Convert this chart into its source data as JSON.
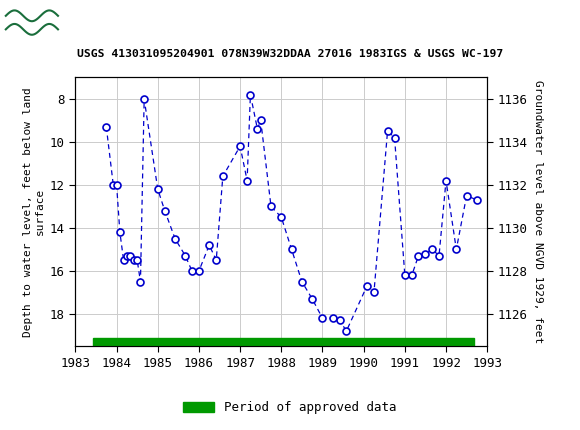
{
  "title": "USGS 413031095204901 078N39W32DDAA 27016 1983IGS & USGS WC-197",
  "ylabel_left": "Depth to water level, feet below land\nsurface",
  "ylabel_right": "Groundwater level above NGVD 1929, feet",
  "xlim": [
    1983.0,
    1993.0
  ],
  "ylim_left": [
    19.5,
    7.0
  ],
  "ylim_right": [
    1124.5,
    1137.0
  ],
  "yticks_left": [
    8,
    10,
    12,
    14,
    16,
    18
  ],
  "yticks_right": [
    1126,
    1128,
    1130,
    1132,
    1134,
    1136
  ],
  "xticks": [
    1983,
    1984,
    1985,
    1986,
    1987,
    1988,
    1989,
    1990,
    1991,
    1992,
    1993
  ],
  "header_color": "#1a6e3c",
  "line_color": "#0000cc",
  "marker_facecolor": "#ffffff",
  "marker_edgecolor": "#0000cc",
  "background_color": "#ffffff",
  "grid_color": "#cccccc",
  "legend_label": "Period of approved data",
  "bar_color": "#009900",
  "data_x": [
    1983.75,
    1983.92,
    1984.0,
    1984.08,
    1984.17,
    1984.25,
    1984.33,
    1984.42,
    1984.5,
    1984.58,
    1984.67,
    1985.0,
    1985.17,
    1985.42,
    1985.67,
    1985.83,
    1986.0,
    1986.25,
    1986.42,
    1986.58,
    1987.0,
    1987.17,
    1987.25,
    1987.42,
    1987.5,
    1987.75,
    1988.0,
    1988.25,
    1988.5,
    1988.75,
    1989.0,
    1989.25,
    1989.42,
    1989.58,
    1990.08,
    1990.25,
    1990.58,
    1990.75,
    1991.0,
    1991.17,
    1991.33,
    1991.5,
    1991.67,
    1991.83,
    1992.0,
    1992.25,
    1992.5,
    1992.75
  ],
  "data_y": [
    9.3,
    12.0,
    12.0,
    14.2,
    15.5,
    15.3,
    15.3,
    15.5,
    15.5,
    16.5,
    8.0,
    12.2,
    13.2,
    14.5,
    15.3,
    16.0,
    16.0,
    14.8,
    15.5,
    11.6,
    10.2,
    11.8,
    7.8,
    9.4,
    9.0,
    13.0,
    13.5,
    15.0,
    16.5,
    17.3,
    18.2,
    18.2,
    18.3,
    18.8,
    16.7,
    17.0,
    9.5,
    9.8,
    16.2,
    16.2,
    15.3,
    15.2,
    15.0,
    15.3,
    11.8,
    15.0,
    12.5,
    12.7
  ],
  "bar_x_start": 1983.42,
  "bar_x_end": 1992.67
}
